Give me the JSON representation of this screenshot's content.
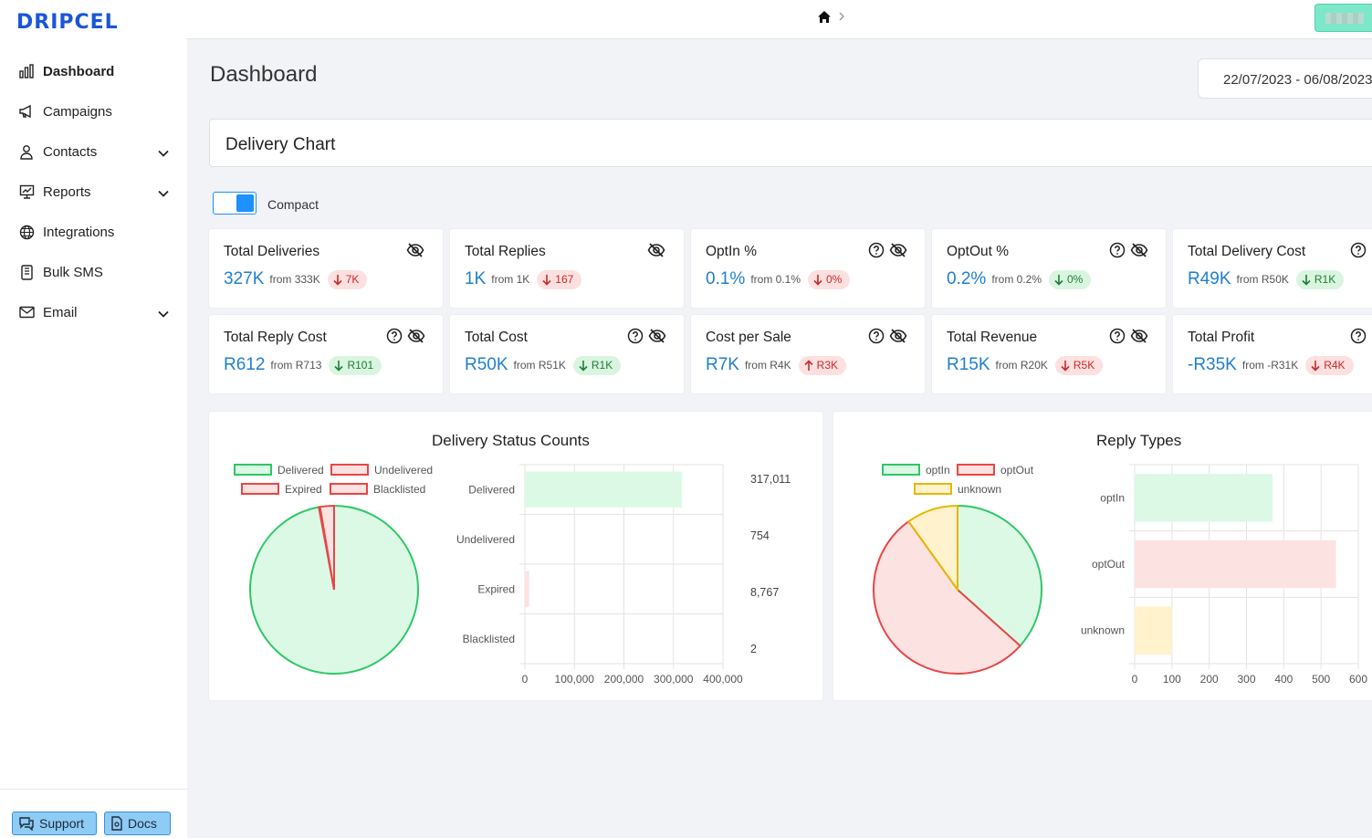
{
  "app": {
    "logo": "DRIPCEL"
  },
  "sidebar": {
    "items": [
      {
        "label": "Dashboard",
        "icon": "bar-chart-icon",
        "active": true,
        "has_chevron": false
      },
      {
        "label": "Campaigns",
        "icon": "megaphone-icon",
        "active": false,
        "has_chevron": false
      },
      {
        "label": "Contacts",
        "icon": "person-icon",
        "active": false,
        "has_chevron": true
      },
      {
        "label": "Reports",
        "icon": "report-icon",
        "active": false,
        "has_chevron": true
      },
      {
        "label": "Integrations",
        "icon": "globe-icon",
        "active": false,
        "has_chevron": false
      },
      {
        "label": "Bulk SMS",
        "icon": "phone-icon",
        "active": false,
        "has_chevron": false
      },
      {
        "label": "Email",
        "icon": "mail-icon",
        "active": false,
        "has_chevron": true
      }
    ],
    "footer": {
      "support_label": "Support",
      "docs_label": "Docs"
    }
  },
  "header": {
    "page_title": "Dashboard",
    "date_range": "22/07/2023 - 06/08/2023"
  },
  "delivery_chart": {
    "title": "Delivery Chart",
    "toggle_label": "Compact",
    "toggle_on": true
  },
  "stats": [
    {
      "title": "Total Deliveries",
      "value": "327K",
      "from": "from 333K",
      "delta": "7K",
      "trend": "down",
      "tone": "red",
      "help": false
    },
    {
      "title": "Total Replies",
      "value": "1K",
      "from": "from 1K",
      "delta": "167",
      "trend": "down",
      "tone": "red",
      "help": false
    },
    {
      "title": "OptIn %",
      "value": "0.1%",
      "from": "from 0.1%",
      "delta": "0%",
      "trend": "down",
      "tone": "red",
      "help": true
    },
    {
      "title": "OptOut %",
      "value": "0.2%",
      "from": "from 0.2%",
      "delta": "0%",
      "trend": "down",
      "tone": "green",
      "help": true
    },
    {
      "title": "Total Delivery Cost",
      "value": "R49K",
      "from": "from R50K",
      "delta": "R1K",
      "trend": "down",
      "tone": "green",
      "help": true
    },
    {
      "title": "Total Reply Cost",
      "value": "R612",
      "from": "from R713",
      "delta": "R101",
      "trend": "down",
      "tone": "green",
      "help": true
    },
    {
      "title": "Total Cost",
      "value": "R50K",
      "from": "from R51K",
      "delta": "R1K",
      "trend": "down",
      "tone": "green",
      "help": true
    },
    {
      "title": "Cost per Sale",
      "value": "R7K",
      "from": "from R4K",
      "delta": "R3K",
      "trend": "up",
      "tone": "red",
      "help": true
    },
    {
      "title": "Total Revenue",
      "value": "R15K",
      "from": "from R20K",
      "delta": "R5K",
      "trend": "down",
      "tone": "red",
      "help": true
    },
    {
      "title": "Total Profit",
      "value": "-R35K",
      "from": "from -R31K",
      "delta": "R4K",
      "trend": "down",
      "tone": "red",
      "help": true
    }
  ],
  "colors": {
    "green_fill": "#dcf9e6",
    "green_stroke": "#2ec866",
    "red_fill": "#fde2e2",
    "red_stroke": "#e84646",
    "yellow_fill": "#fff2cc",
    "yellow_stroke": "#e6b800",
    "accent": "#1f7fcf"
  },
  "chart_data": [
    {
      "type": "pie+bar",
      "title": "Delivery Status Counts",
      "categories": [
        "Delivered",
        "Undelivered",
        "Expired",
        "Blacklisted"
      ],
      "values": [
        317011,
        754,
        8767,
        2
      ],
      "value_labels": [
        "317,011",
        "754",
        "8,767",
        "2"
      ],
      "legend": [
        "Delivered",
        "Undelivered",
        "Expired",
        "Blacklisted"
      ],
      "legend_tones": [
        "green",
        "red",
        "red",
        "red"
      ],
      "xlim": [
        0,
        400000
      ],
      "xticks": [
        "0",
        "100,000",
        "200,000",
        "300,000",
        "400,000"
      ],
      "xtick_values": [
        0,
        100000,
        200000,
        300000,
        400000
      ],
      "grid": true
    },
    {
      "type": "pie+bar",
      "title": "Reply Types",
      "categories": [
        "optIn",
        "optOut",
        "unknown"
      ],
      "values": [
        370,
        540,
        100
      ],
      "legend": [
        "optIn",
        "optOut",
        "unknown"
      ],
      "legend_tones": [
        "green",
        "red",
        "yellow"
      ],
      "xlim": [
        0,
        600
      ],
      "xticks": [
        "0",
        "100",
        "200",
        "300",
        "400",
        "500",
        "600"
      ],
      "xtick_values": [
        0,
        100,
        200,
        300,
        400,
        500,
        600
      ],
      "grid": true
    }
  ]
}
